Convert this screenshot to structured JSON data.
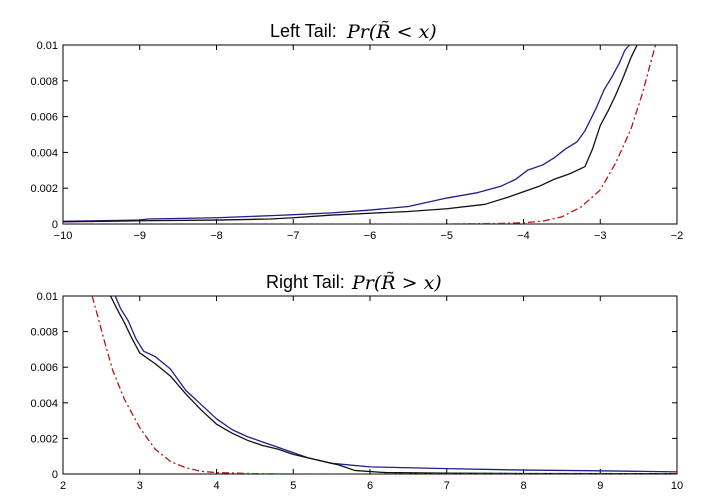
{
  "chart_data": [
    {
      "type": "line",
      "title": "Left Tail: ",
      "title_math": "Pr(R̃ < x)",
      "xlabel": "",
      "ylabel": "",
      "xlim": [
        -10,
        -2
      ],
      "ylim": [
        0,
        0.01
      ],
      "x_ticks": [
        -10,
        -9,
        -8,
        -7,
        -6,
        -5,
        -4,
        -3,
        -2
      ],
      "x_tick_labels": [
        "−10",
        "−9",
        "−8",
        "−7",
        "−6",
        "−5",
        "−4",
        "−3",
        "−2"
      ],
      "y_ticks": [
        0,
        0.002,
        0.004,
        0.006,
        0.008,
        0.01
      ],
      "y_tick_labels": [
        "0",
        "0.002",
        "0.004",
        "0.006",
        "0.008",
        "0.01"
      ],
      "grid": false,
      "legend": "none",
      "series": [
        {
          "color": "#1f1f8f",
          "style": "solid",
          "points": [
            [
              -10,
              0.00015
            ],
            [
              -9.0,
              0.00022
            ],
            [
              -8.9,
              0.00028
            ],
            [
              -8,
              0.00035
            ],
            [
              -7.2,
              0.00048
            ],
            [
              -7.0,
              0.00052
            ],
            [
              -6.5,
              0.00062
            ],
            [
              -6,
              0.00078
            ],
            [
              -5.5,
              0.00098
            ],
            [
              -5.0,
              0.00145
            ],
            [
              -4.6,
              0.00175
            ],
            [
              -4.3,
              0.0021
            ],
            [
              -4.1,
              0.0025
            ],
            [
              -3.95,
              0.003
            ],
            [
              -3.75,
              0.0033
            ],
            [
              -3.6,
              0.0037
            ],
            [
              -3.45,
              0.0042
            ],
            [
              -3.3,
              0.0046
            ],
            [
              -3.2,
              0.0052
            ],
            [
              -3.05,
              0.0065
            ],
            [
              -2.95,
              0.0075
            ],
            [
              -2.85,
              0.0082
            ],
            [
              -2.75,
              0.009
            ],
            [
              -2.68,
              0.0097
            ],
            [
              -2.62,
              0.01
            ]
          ]
        },
        {
          "color": "#111111",
          "style": "solid",
          "points": [
            [
              -10,
              0.00012
            ],
            [
              -9,
              0.00018
            ],
            [
              -8,
              0.00022
            ],
            [
              -7.3,
              0.00028
            ],
            [
              -7,
              0.00035
            ],
            [
              -6.5,
              0.0005
            ],
            [
              -6,
              0.0006
            ],
            [
              -5.5,
              0.0007
            ],
            [
              -5,
              0.00085
            ],
            [
              -4.5,
              0.0011
            ],
            [
              -4.2,
              0.0015
            ],
            [
              -4.0,
              0.0018
            ],
            [
              -3.8,
              0.0021
            ],
            [
              -3.6,
              0.0025
            ],
            [
              -3.4,
              0.0028
            ],
            [
              -3.2,
              0.0032
            ],
            [
              -3.1,
              0.0042
            ],
            [
              -3.0,
              0.0055
            ],
            [
              -2.9,
              0.0063
            ],
            [
              -2.8,
              0.0072
            ],
            [
              -2.7,
              0.0082
            ],
            [
              -2.6,
              0.0093
            ],
            [
              -2.52,
              0.01
            ]
          ]
        },
        {
          "color": "#b81414",
          "style": "dashdot",
          "points": [
            [
              -10,
              0
            ],
            [
              -5,
              0
            ],
            [
              -4.3,
              3e-05
            ],
            [
              -4.0,
              7e-05
            ],
            [
              -3.75,
              0.00016
            ],
            [
              -3.5,
              0.0004
            ],
            [
              -3.25,
              0.00095
            ],
            [
              -3.0,
              0.0019
            ],
            [
              -2.8,
              0.0034
            ],
            [
              -2.6,
              0.0053
            ],
            [
              -2.45,
              0.0073
            ],
            [
              -2.35,
              0.0089
            ],
            [
              -2.28,
              0.01
            ]
          ]
        }
      ]
    },
    {
      "type": "line",
      "title": "Right Tail: ",
      "title_math": "Pr(R̃ > x)",
      "xlabel": "",
      "ylabel": "",
      "xlim": [
        2,
        10
      ],
      "ylim": [
        0,
        0.01
      ],
      "x_ticks": [
        2,
        3,
        4,
        5,
        6,
        7,
        8,
        9,
        10
      ],
      "x_tick_labels": [
        "2",
        "3",
        "4",
        "5",
        "6",
        "7",
        "8",
        "9",
        "10"
      ],
      "y_ticks": [
        0,
        0.002,
        0.004,
        0.006,
        0.008,
        0.01
      ],
      "y_tick_labels": [
        "0",
        "0.002",
        "0.004",
        "0.006",
        "0.008",
        "0.01"
      ],
      "grid": false,
      "legend": "none",
      "series": [
        {
          "color": "#1f1f8f",
          "style": "solid",
          "points": [
            [
              2.68,
              0.01
            ],
            [
              2.75,
              0.0093
            ],
            [
              2.85,
              0.0086
            ],
            [
              2.95,
              0.0076
            ],
            [
              3.05,
              0.0069
            ],
            [
              3.2,
              0.0066
            ],
            [
              3.4,
              0.0059
            ],
            [
              3.6,
              0.0047
            ],
            [
              3.8,
              0.0039
            ],
            [
              4.0,
              0.0031
            ],
            [
              4.2,
              0.0025
            ],
            [
              4.4,
              0.0021
            ],
            [
              4.6,
              0.0018
            ],
            [
              4.8,
              0.0015
            ],
            [
              5.0,
              0.0012
            ],
            [
              5.2,
              0.0009
            ],
            [
              5.5,
              0.0006
            ],
            [
              6,
              0.0004
            ],
            [
              7,
              0.0003
            ],
            [
              8,
              0.00022
            ],
            [
              9,
              0.00018
            ],
            [
              10,
              0.00012
            ]
          ]
        },
        {
          "color": "#111111",
          "style": "solid",
          "points": [
            [
              2.62,
              0.01
            ],
            [
              2.7,
              0.0093
            ],
            [
              2.8,
              0.0085
            ],
            [
              2.9,
              0.0076
            ],
            [
              3.0,
              0.0068
            ],
            [
              3.2,
              0.0062
            ],
            [
              3.4,
              0.0055
            ],
            [
              3.6,
              0.0045
            ],
            [
              3.8,
              0.0036
            ],
            [
              4.0,
              0.0028
            ],
            [
              4.2,
              0.0023
            ],
            [
              4.4,
              0.0019
            ],
            [
              4.6,
              0.0016
            ],
            [
              4.8,
              0.0014
            ],
            [
              5.0,
              0.0011
            ],
            [
              5.3,
              0.0008
            ],
            [
              5.6,
              0.0005
            ],
            [
              5.8,
              0.0002
            ],
            [
              6.2,
              8e-05
            ],
            [
              7,
              5e-05
            ],
            [
              8,
              3e-05
            ],
            [
              10,
              2e-05
            ]
          ]
        },
        {
          "color": "#b81414",
          "style": "dashdot",
          "points": [
            [
              2.38,
              0.01
            ],
            [
              2.45,
              0.0089
            ],
            [
              2.55,
              0.0073
            ],
            [
              2.65,
              0.0058
            ],
            [
              2.8,
              0.0042
            ],
            [
              3.0,
              0.0026
            ],
            [
              3.2,
              0.0014
            ],
            [
              3.4,
              0.0007
            ],
            [
              3.6,
              0.00035
            ],
            [
              3.8,
              0.00015
            ],
            [
              4.0,
              8e-05
            ],
            [
              4.5,
              2e-05
            ],
            [
              5,
              0
            ],
            [
              10,
              0
            ]
          ]
        }
      ]
    }
  ]
}
